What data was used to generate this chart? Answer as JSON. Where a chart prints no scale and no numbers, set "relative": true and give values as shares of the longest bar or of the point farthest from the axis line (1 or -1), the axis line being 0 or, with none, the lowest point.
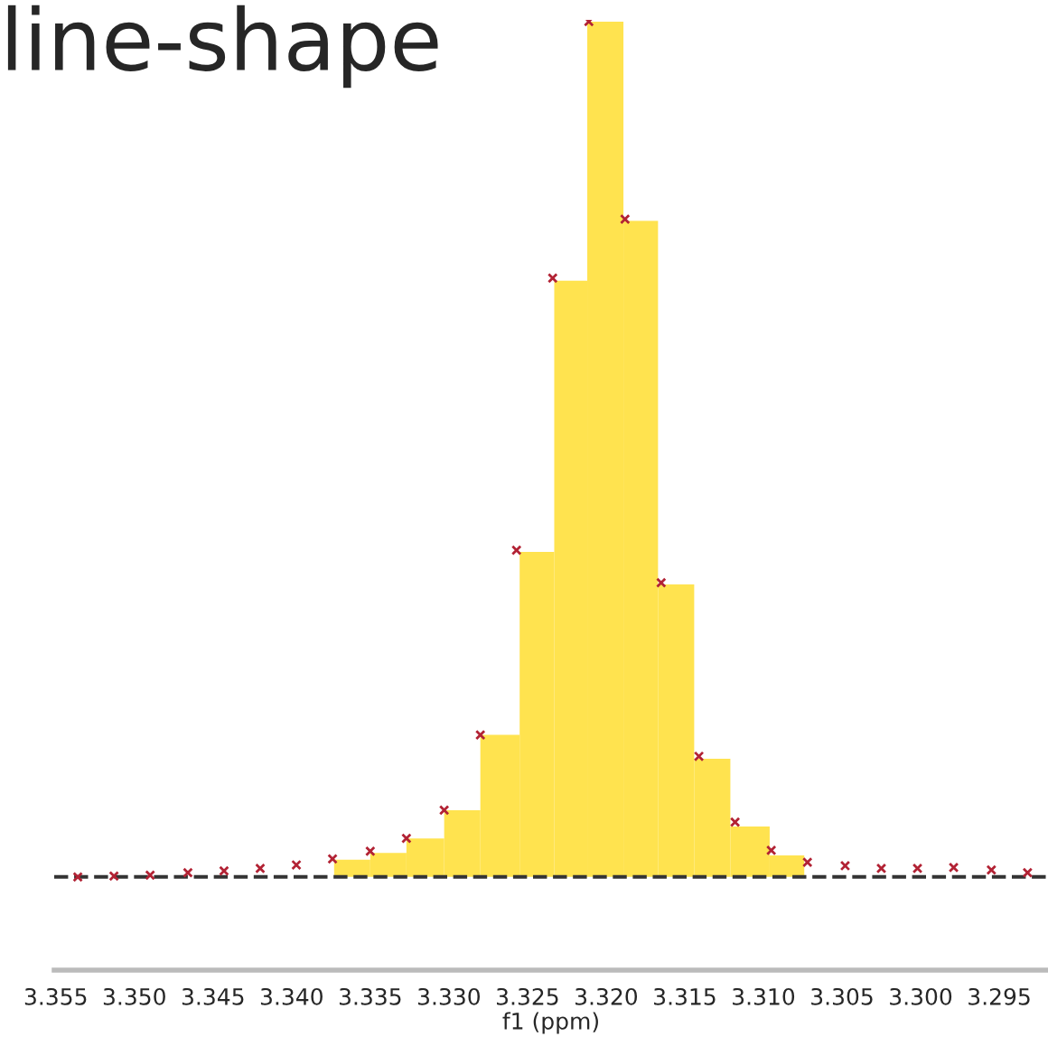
{
  "chart_data": {
    "type": "histogram",
    "title": "line-shape",
    "xlabel": "f1 (ppm)",
    "relative": true,
    "bins": [
      3.3373,
      3.335,
      3.3327,
      3.3303,
      3.328,
      3.3255,
      3.3233,
      3.3212,
      3.3189,
      3.3167,
      3.3144,
      3.3121,
      3.3096,
      3.3074
    ],
    "series": [
      {
        "color": "#ffe34f",
        "values": [
          0.02,
          0.028,
          0.045,
          0.078,
          0.166,
          0.38,
          0.697,
          1,
          0.767,
          0.342,
          0.138,
          0.059,
          0.025
        ]
      },
      {
        "type": "scatter",
        "color": "#b22234",
        "marker": "cross",
        "x": [
          3.3536,
          3.3513,
          3.349,
          3.3466,
          3.3443,
          3.342,
          3.3397,
          3.3374,
          3.335,
          3.3327,
          3.3303,
          3.328,
          3.3257,
          3.3234,
          3.3211,
          3.3188,
          3.3165,
          3.3141,
          3.3118,
          3.3095,
          3.3072,
          3.3048,
          3.3025,
          3.3002,
          3.2979,
          3.2955,
          3.2932
        ],
        "values": [
          0,
          0.001,
          0.002,
          0.005,
          0.007,
          0.01,
          0.014,
          0.021,
          0.03,
          0.045,
          0.078,
          0.166,
          0.382,
          0.7,
          1,
          0.769,
          0.344,
          0.141,
          0.064,
          0.031,
          0.017,
          0.013,
          0.01,
          0.01,
          0.011,
          0.008,
          0.005
        ]
      }
    ],
    "ref_lines": [
      {
        "axis": "y",
        "value": 0,
        "color": "#333333",
        "line_style": "dashed"
      }
    ],
    "xlim": [
      3.3551,
      3.2919
    ],
    "xticks": [
      {
        "value": 3.355,
        "label": "3.355"
      },
      {
        "value": 3.35,
        "label": "3.350"
      },
      {
        "value": 3.345,
        "label": "3.345"
      },
      {
        "value": 3.34,
        "label": "3.340"
      },
      {
        "value": 3.335,
        "label": "3.335"
      },
      {
        "value": 3.33,
        "label": "3.330"
      },
      {
        "value": 3.325,
        "label": "3.325"
      },
      {
        "value": 3.32,
        "label": "3.320"
      },
      {
        "value": 3.315,
        "label": "3.315"
      },
      {
        "value": 3.31,
        "label": "3.310"
      },
      {
        "value": 3.305,
        "label": "3.305"
      },
      {
        "value": 3.3,
        "label": "3.300"
      },
      {
        "value": 3.295,
        "label": "3.295"
      }
    ],
    "tick_labels": "x",
    "grid": false,
    "legend": false
  }
}
